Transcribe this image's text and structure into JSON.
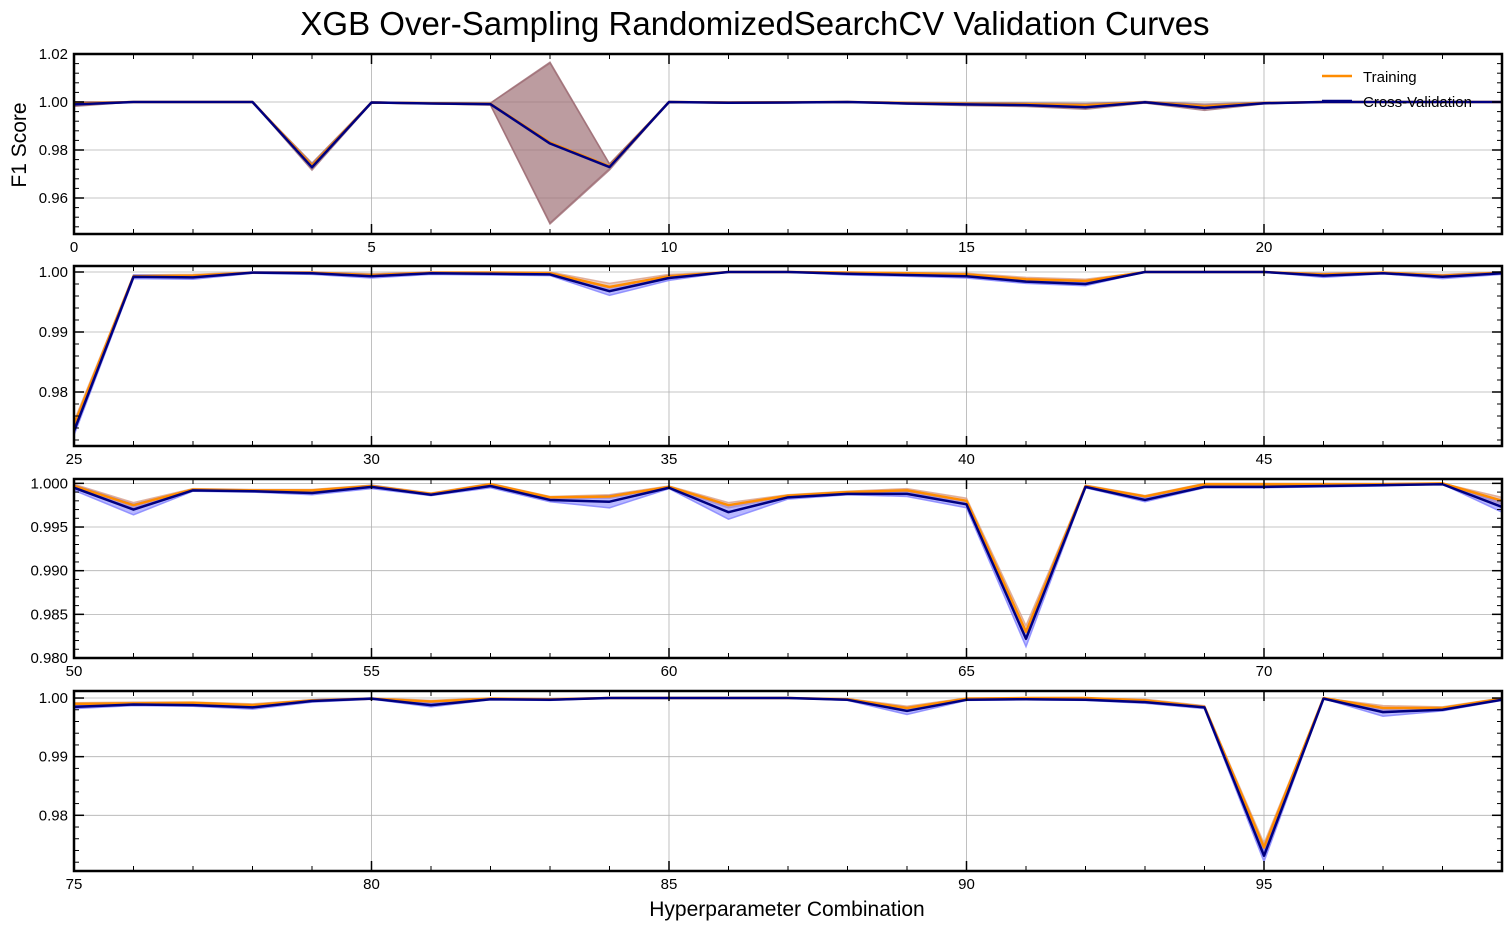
{
  "chart_data": {
    "type": "line",
    "title": "XGB Over-Sampling RandomizedSearchCV Validation Curves",
    "xlabel": "Hyperparameter Combination",
    "ylabel": "F1 Score",
    "grid": true,
    "legend": {
      "placement": "top-right",
      "entries": [
        "Training",
        "Cross-Validation"
      ]
    },
    "colors": {
      "training": "#ff8c00",
      "cv": "#000080",
      "band_training": "#d9a08a",
      "band_cv": "#8080ff",
      "band_large": "#a07078"
    },
    "panels": [
      {
        "xlim": [
          0,
          24
        ],
        "ylim": [
          0.945,
          1.02
        ],
        "xticks": [
          0,
          5,
          10,
          15,
          20
        ],
        "yticks": [
          "1.02",
          "1.00",
          "0.98",
          "0.96"
        ],
        "ytick_values": [
          1.02,
          1.0,
          0.98,
          0.96
        ],
        "x": [
          0,
          1,
          2,
          3,
          4,
          5,
          6,
          7,
          8,
          9,
          10,
          11,
          12,
          13,
          14,
          15,
          16,
          17,
          18,
          19,
          20,
          21,
          22,
          23,
          24
        ],
        "series": [
          {
            "name": "Training",
            "values": [
              0.9993,
              1.0,
              1.0,
              1.0,
              0.9735,
              0.9998,
              0.9995,
              0.9992,
              0.9831,
              0.9732,
              1.0,
              0.9998,
              0.9999,
              1.0,
              0.9996,
              0.9992,
              0.9991,
              0.9986,
              0.9999,
              0.9982,
              0.9996,
              1.0,
              1.0,
              1.0,
              1.0
            ],
            "spread": [
              0.0008,
              0,
              0,
              0,
              0.001,
              0.0002,
              0.0002,
              0.0004,
              0.0335,
              0.001,
              0,
              0.0002,
              0.0002,
              0,
              0.0003,
              0.0005,
              0.0005,
              0.0008,
              0.0003,
              0.0009,
              0.0003,
              0,
              0,
              0,
              0
            ]
          },
          {
            "name": "Cross-Validation",
            "values": [
              0.999,
              1.0,
              1.0,
              1.0,
              0.9728,
              0.9998,
              0.9994,
              0.9991,
              0.9827,
              0.9729,
              1.0,
              0.9997,
              0.9998,
              1.0,
              0.9994,
              0.999,
              0.9987,
              0.9978,
              0.9999,
              0.9975,
              0.9995,
              1.0,
              1.0,
              1.0,
              1.0
            ],
            "spread": [
              0.0008,
              0,
              0,
              0,
              0.0012,
              0.0002,
              0.0002,
              0.0004,
              0.0335,
              0.0012,
              0,
              0.0002,
              0.0002,
              0,
              0.0003,
              0.0005,
              0.0006,
              0.0008,
              0.0003,
              0.001,
              0.0003,
              0,
              0,
              0,
              0
            ]
          }
        ]
      },
      {
        "xlim": [
          25,
          49
        ],
        "ylim": [
          0.971,
          1.001
        ],
        "xticks": [
          25,
          30,
          35,
          40,
          45
        ],
        "yticks": [
          "1.00",
          "0.99",
          "0.98"
        ],
        "ytick_values": [
          1.0,
          0.99,
          0.98
        ],
        "x": [
          25,
          26,
          27,
          28,
          29,
          30,
          31,
          32,
          33,
          34,
          35,
          36,
          37,
          38,
          39,
          40,
          41,
          42,
          43,
          44,
          45,
          46,
          47,
          48,
          49
        ],
        "series": [
          {
            "name": "Training",
            "values": [
              0.9745,
              0.9993,
              0.9994,
              0.9999,
              0.9999,
              0.9995,
              0.9999,
              0.9999,
              0.9998,
              0.9975,
              0.9993,
              1.0,
              1.0,
              0.9999,
              0.9998,
              0.9996,
              0.9988,
              0.9985,
              1.0,
              1.0,
              1.0,
              0.9996,
              0.9999,
              0.9994,
              0.9999
            ],
            "spread": [
              0.0006,
              0.0002,
              0.0002,
              0.0001,
              0.0001,
              0.0002,
              0.0001,
              0.0001,
              0.0002,
              0.0006,
              0.0003,
              0,
              0,
              0.0001,
              0.0001,
              0.0002,
              0.0003,
              0.0003,
              0,
              0,
              0,
              0.0002,
              0.0001,
              0.0002,
              0.0001
            ]
          },
          {
            "name": "Cross-Validation",
            "values": [
              0.9735,
              0.9992,
              0.9991,
              0.9999,
              0.9998,
              0.9993,
              0.9998,
              0.9997,
              0.9996,
              0.9968,
              0.999,
              1.0,
              1.0,
              0.9997,
              0.9995,
              0.9993,
              0.9984,
              0.998,
              1.0,
              1.0,
              1.0,
              0.9994,
              0.9998,
              0.9992,
              0.9998
            ],
            "spread": [
              0.0007,
              0.0003,
              0.0003,
              0.0001,
              0.0002,
              0.0003,
              0.0002,
              0.0002,
              0.0002,
              0.0007,
              0.0004,
              0,
              0,
              0.0002,
              0.0002,
              0.0003,
              0.0003,
              0.0003,
              0,
              0,
              0,
              0.0003,
              0.0001,
              0.0003,
              0.0002
            ]
          }
        ]
      },
      {
        "xlim": [
          50,
          74
        ],
        "ylim": [
          0.98,
          1.0005
        ],
        "xticks": [
          50,
          55,
          60,
          65,
          70
        ],
        "yticks": [
          "1.000",
          "0.995",
          "0.990",
          "0.985",
          "0.980"
        ],
        "ytick_values": [
          1.0,
          0.995,
          0.99,
          0.985,
          0.98
        ],
        "x": [
          50,
          51,
          52,
          53,
          54,
          55,
          56,
          57,
          58,
          59,
          60,
          61,
          62,
          63,
          64,
          65,
          66,
          67,
          68,
          69,
          70,
          71,
          72,
          73,
          74
        ],
        "series": [
          {
            "name": "Training",
            "values": [
              0.9997,
              0.9975,
              0.9993,
              0.9992,
              0.9992,
              0.9997,
              0.9988,
              0.9999,
              0.9984,
              0.9985,
              0.9996,
              0.9975,
              0.9986,
              0.999,
              0.9992,
              0.998,
              0.983,
              0.9997,
              0.9985,
              0.9999,
              0.9999,
              0.9999,
              0.9999,
              1.0,
              0.998
            ],
            "spread": [
              0.0002,
              0.0003,
              0.0001,
              0.0001,
              0.0001,
              0.0001,
              0.0001,
              0.0001,
              0.0001,
              0.0002,
              0.0001,
              0.0003,
              0.0001,
              0.0001,
              0.0002,
              0.0003,
              0.0007,
              0.0001,
              0.0001,
              0.0001,
              0.0001,
              0.0001,
              0.0001,
              0,
              0.0004
            ]
          },
          {
            "name": "Cross-Validation",
            "values": [
              0.9995,
              0.997,
              0.9992,
              0.9991,
              0.9989,
              0.9996,
              0.9987,
              0.9997,
              0.9981,
              0.9979,
              0.9995,
              0.9967,
              0.9984,
              0.9988,
              0.9988,
              0.9976,
              0.9822,
              0.9996,
              0.9981,
              0.9996,
              0.9996,
              0.9997,
              0.9998,
              0.9999,
              0.9973
            ],
            "spread": [
              0.0003,
              0.0006,
              0.0001,
              0.0001,
              0.0002,
              0.0002,
              0.0001,
              0.0002,
              0.0002,
              0.0007,
              0.0001,
              0.0008,
              0.0002,
              0.0001,
              0.0003,
              0.0004,
              0.0009,
              0.0001,
              0.0002,
              0.0001,
              0.0001,
              0.0001,
              0.0001,
              0,
              0.0006
            ]
          }
        ]
      },
      {
        "xlim": [
          75,
          99
        ],
        "ylim": [
          0.9705,
          1.0012
        ],
        "xticks": [
          75,
          80,
          85,
          90,
          95
        ],
        "yticks": [
          "1.00",
          "0.99",
          "0.98"
        ],
        "ytick_values": [
          1.0,
          0.99,
          0.98
        ],
        "x": [
          75,
          76,
          77,
          78,
          79,
          80,
          81,
          82,
          83,
          84,
          85,
          86,
          87,
          88,
          89,
          90,
          91,
          92,
          93,
          94,
          95,
          96,
          97,
          98,
          99
        ],
        "series": [
          {
            "name": "Training",
            "values": [
              0.999,
              0.9991,
              0.9992,
              0.9988,
              0.9996,
              0.9999,
              0.9994,
              0.9999,
              0.9998,
              1.0,
              1.0,
              1.0,
              1.0,
              0.9998,
              0.9983,
              0.9999,
              1.0,
              1.0,
              0.9996,
              0.9985,
              0.9745,
              1.0,
              0.9983,
              0.9983,
              0.9999
            ],
            "spread": [
              0.0002,
              0.0002,
              0.0001,
              0.0002,
              0.0001,
              0.0001,
              0.0002,
              0.0001,
              0.0001,
              0,
              0,
              0,
              0,
              0.0001,
              0.0003,
              0.0001,
              0,
              0,
              0.0002,
              0.0002,
              0.0007,
              0,
              0.0004,
              0.0002,
              0.0001
            ]
          },
          {
            "name": "Cross-Validation",
            "values": [
              0.9985,
              0.9989,
              0.9988,
              0.9984,
              0.9995,
              0.9999,
              0.9988,
              0.9998,
              0.9997,
              1.0,
              1.0,
              1.0,
              1.0,
              0.9997,
              0.9978,
              0.9997,
              0.9998,
              0.9997,
              0.9993,
              0.9984,
              0.9731,
              0.9999,
              0.9976,
              0.998,
              0.9997
            ],
            "spread": [
              0.0003,
              0.0002,
              0.0002,
              0.0003,
              0.0002,
              0.0001,
              0.0003,
              0.0001,
              0.0001,
              0,
              0,
              0,
              0,
              0.0001,
              0.0006,
              0.0001,
              0.0001,
              0.0001,
              0.0002,
              0.0002,
              0.001,
              0,
              0.0007,
              0.0002,
              0.0001
            ]
          }
        ]
      }
    ]
  }
}
